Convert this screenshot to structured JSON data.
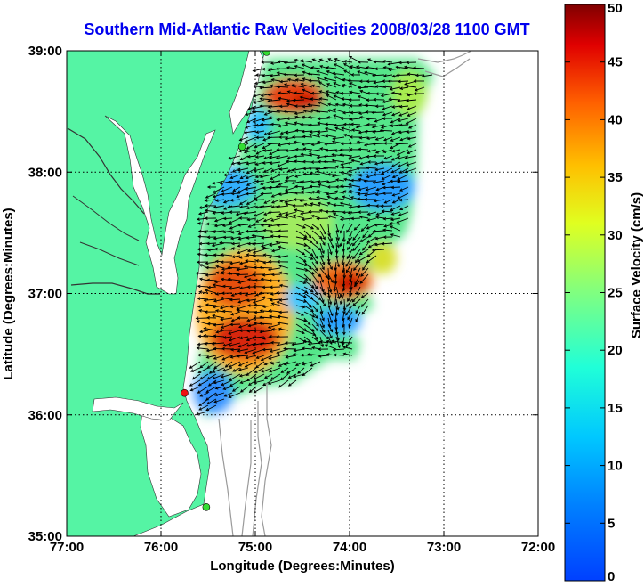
{
  "title": "Southern Mid-Atlantic Raw Velocities 2008/03/28 1100 GMT",
  "axes": {
    "xlabel": "Longitude (Degrees:Minutes)",
    "ylabel": "Latitude (Degrees:Minutes)",
    "xticks": [
      "77:00",
      "76:00",
      "75:00",
      "74:00",
      "73:00",
      "72:00"
    ],
    "yticks": [
      "39:00",
      "38:00",
      "37:00",
      "36:00",
      "35:00"
    ],
    "xlim_deg_west": [
      77,
      72
    ],
    "ylim_deg_north": [
      35,
      39
    ],
    "grid": "dotted"
  },
  "colorbar": {
    "label": "Surface Velocity (cm/s)",
    "ticks": [
      "0",
      "5",
      "10",
      "15",
      "20",
      "25",
      "30",
      "35",
      "40",
      "45",
      "50"
    ],
    "range": [
      0,
      50
    ],
    "colormap": "jet"
  },
  "colors": {
    "land": "#55f4a4",
    "water": "#ffffff",
    "title": "#0000ee",
    "vector": "#000000",
    "bathymetry": "#9a9a9a",
    "station_normal": "#33dd33",
    "station_alert": "#ee1111"
  },
  "stations": [
    {
      "lon": -74.88,
      "lat": 38.99,
      "status": "normal"
    },
    {
      "lon": -75.14,
      "lat": 38.21,
      "status": "normal"
    },
    {
      "lon": -75.75,
      "lat": 36.18,
      "status": "alert"
    },
    {
      "lon": -75.52,
      "lat": 35.24,
      "status": "normal"
    }
  ]
}
